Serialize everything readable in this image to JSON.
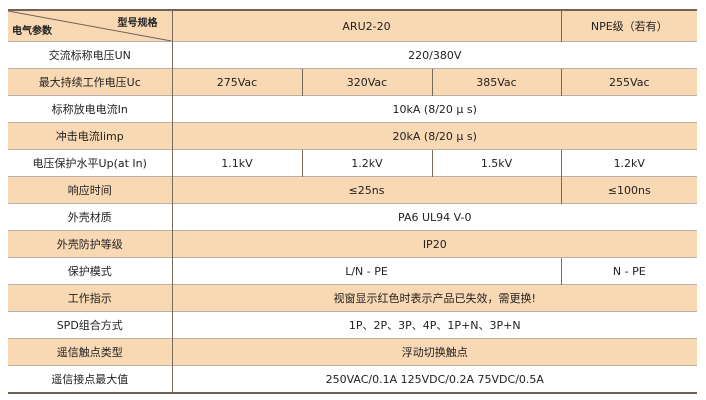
{
  "header": {
    "corner_top_right": "型号规格",
    "corner_bottom_left": "电气参数",
    "model": "ARU2-20",
    "npe": "NPE级（若有）"
  },
  "rows": [
    {
      "label": "交流标称电压UN",
      "value": "220/380V"
    },
    {
      "label": "最大持续工作电压Uc",
      "values": [
        "275Vac",
        "320Vac",
        "385Vac",
        "255Vac"
      ]
    },
    {
      "label": "标称放电电流In",
      "value": "10kA (8/20 μ s)"
    },
    {
      "label": "冲击电流Iimp",
      "value": "20kA (8/20 μ s)"
    },
    {
      "label": "电压保护水平Up(at In)",
      "values": [
        "1.1kV",
        "1.2kV",
        "1.5kV",
        "1.2kV"
      ]
    },
    {
      "label": "响应时间",
      "value": "≤25ns",
      "npe": "≤100ns"
    },
    {
      "label": "外壳材质",
      "value": "PA6  UL94 V-0"
    },
    {
      "label": "外壳防护等级",
      "value": "IP20"
    },
    {
      "label": "保护模式",
      "value": "L/N - PE",
      "npe": "N - PE"
    },
    {
      "label": "工作指示",
      "value": "视窗显示红色时表示产品已失效，需更换!"
    },
    {
      "label": "SPD组合方式",
      "value": "1P、2P、3P、4P、1P+N、3P+N"
    },
    {
      "label": "遥信触点类型",
      "value": "浮动切换触点"
    },
    {
      "label": "遥信接点最大值",
      "value": "250VAC/0.1A   125VDC/0.2A    75VDC/0.5A"
    }
  ],
  "colors": {
    "shade": "#f9d8b4",
    "border": "#7a6a5e"
  }
}
